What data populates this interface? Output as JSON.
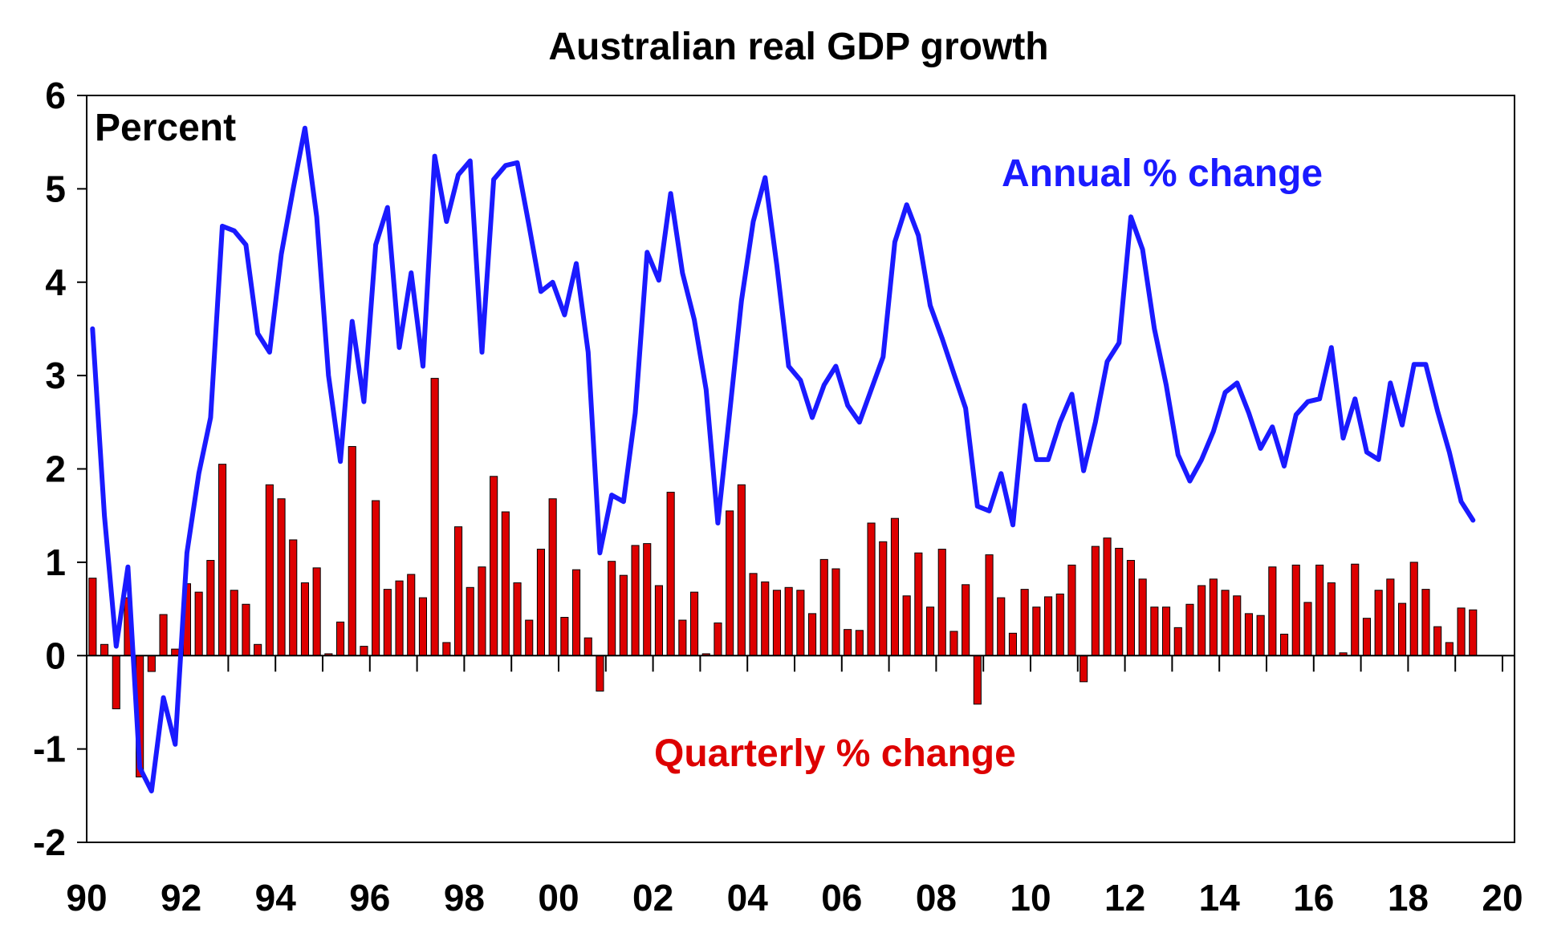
{
  "chart_data": {
    "type": "bar+line",
    "title": "Australian real GDP growth",
    "unit_label": "Percent",
    "ylim": [
      -2,
      6
    ],
    "yticks": [
      -2,
      -1,
      0,
      1,
      2,
      3,
      4,
      5,
      6
    ],
    "ytick_labels": [
      "-2",
      "-1",
      "0",
      "1",
      "2",
      "3",
      "4",
      "5",
      "6"
    ],
    "xlim": [
      1990.0,
      2020.0
    ],
    "xtick_values": [
      1990,
      1992,
      1994,
      1996,
      1998,
      2000,
      2002,
      2004,
      2006,
      2008,
      2010,
      2012,
      2014,
      2016,
      2018,
      2020
    ],
    "xtick_labels": [
      "90",
      "92",
      "94",
      "96",
      "98",
      "00",
      "02",
      "04",
      "06",
      "08",
      "10",
      "12",
      "14",
      "16",
      "18",
      "20"
    ],
    "start_year": 1990,
    "period": "quarterly",
    "series": [
      {
        "name": "Annual % change",
        "kind": "line",
        "color": "#1a1aff",
        "values": [
          3.5,
          1.5,
          0.1,
          0.95,
          -1.2,
          -1.45,
          -0.45,
          -0.95,
          1.1,
          1.95,
          2.55,
          4.6,
          4.55,
          4.4,
          3.45,
          3.25,
          4.3,
          5.0,
          5.65,
          4.7,
          3.0,
          2.08,
          3.58,
          2.72,
          4.4,
          4.8,
          3.3,
          4.1,
          3.1,
          5.35,
          4.65,
          5.15,
          5.3,
          3.25,
          5.1,
          5.25,
          5.28,
          4.6,
          3.9,
          4.0,
          3.65,
          4.2,
          3.25,
          1.1,
          1.72,
          1.65,
          2.6,
          4.32,
          4.02,
          4.95,
          4.1,
          3.6,
          2.85,
          1.42,
          2.6,
          3.8,
          4.65,
          5.12,
          4.18,
          3.1,
          2.95,
          2.55,
          2.9,
          3.1,
          2.68,
          2.5,
          2.85,
          3.2,
          4.43,
          4.83,
          4.5,
          3.75,
          3.4,
          3.02,
          2.65,
          1.6,
          1.55,
          1.95,
          1.4,
          2.68,
          2.1,
          2.1,
          2.5,
          2.8,
          1.98,
          2.5,
          3.15,
          3.35,
          4.7,
          4.35,
          3.5,
          2.9,
          2.15,
          1.87,
          2.1,
          2.4,
          2.82,
          2.92,
          2.6,
          2.22,
          2.45,
          2.03,
          2.58,
          2.72,
          2.75,
          3.3,
          2.33,
          2.75,
          2.18,
          2.1,
          2.92,
          2.47,
          3.12,
          3.12,
          2.62,
          2.18,
          1.65,
          1.45
        ]
      },
      {
        "name": "Quarterly % change",
        "kind": "bar",
        "color": "#dd0000",
        "values": [
          0.83,
          0.12,
          -0.57,
          0.62,
          -1.3,
          -0.17,
          0.44,
          0.07,
          0.77,
          0.68,
          1.02,
          2.05,
          0.7,
          0.55,
          0.12,
          1.83,
          1.68,
          1.24,
          0.78,
          0.94,
          0.02,
          0.36,
          2.24,
          0.1,
          1.66,
          0.71,
          0.8,
          0.87,
          0.62,
          2.97,
          0.14,
          1.38,
          0.73,
          0.95,
          1.92,
          1.54,
          0.78,
          0.38,
          1.14,
          1.68,
          0.41,
          0.92,
          0.19,
          -0.38,
          1.01,
          0.86,
          1.18,
          1.2,
          0.75,
          1.75,
          0.38,
          0.68,
          0.02,
          0.35,
          1.55,
          1.83,
          0.88,
          0.79,
          0.7,
          0.73,
          0.7,
          0.45,
          1.03,
          0.93,
          0.28,
          0.27,
          1.42,
          1.22,
          1.47,
          0.64,
          1.1,
          0.52,
          1.14,
          0.26,
          0.76,
          -0.52,
          1.08,
          0.62,
          0.24,
          0.71,
          0.52,
          0.63,
          0.66,
          0.97,
          -0.28,
          1.17,
          1.26,
          1.15,
          1.02,
          0.82,
          0.52,
          0.52,
          0.3,
          0.55,
          0.75,
          0.82,
          0.7,
          0.64,
          0.45,
          0.43,
          0.95,
          0.23,
          0.97,
          0.57,
          0.97,
          0.78,
          0.03,
          0.98,
          0.4,
          0.7,
          0.82,
          0.56,
          1.0,
          0.71,
          0.31,
          0.14,
          0.51,
          0.49
        ]
      }
    ]
  }
}
